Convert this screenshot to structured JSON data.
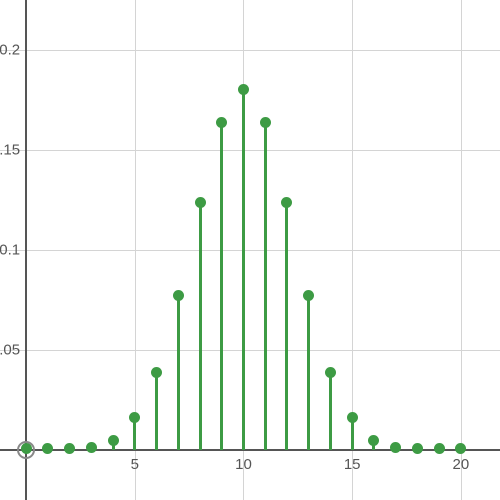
{
  "chart": {
    "type": "stem",
    "xlim": [
      -1.2,
      21.8
    ],
    "ylim": [
      -0.025,
      0.225
    ],
    "x_axis_at": 0,
    "y_axis_at": 0,
    "x_ticks": [
      5,
      10,
      15,
      20
    ],
    "y_ticks": [
      0.05,
      0.1,
      0.15,
      0.2
    ],
    "x_gridlines": [
      0,
      5,
      10,
      15,
      20
    ],
    "y_gridlines": [
      0,
      0.05,
      0.1,
      0.15,
      0.2
    ],
    "x_tick_labels": {
      "5": "5",
      "10": "10",
      "15": "15",
      "20": "20"
    },
    "y_tick_labels": {
      "0.05": ".05",
      "0.1": "0.1",
      "0.15": ".15",
      "0.2": "0.2"
    },
    "tick_fontsize": 15,
    "tick_color": "#555555",
    "grid_color": "#d4d4d4",
    "axis_color": "#555555",
    "background_color": "#ffffff",
    "stem_color": "#3d9b44",
    "marker_color": "#3d9b44",
    "stem_width": 3,
    "marker_size": 11,
    "origin_marker": true,
    "origin_color": "#888888",
    "x": [
      0,
      1,
      2,
      3,
      4,
      5,
      6,
      7,
      8,
      9,
      10,
      11,
      12,
      13,
      14,
      15,
      16,
      17,
      18,
      19,
      20
    ],
    "y": [
      0.001,
      0.001,
      0.001,
      0.0015,
      0.0049,
      0.0163,
      0.039,
      0.0775,
      0.1239,
      0.164,
      0.1801,
      0.164,
      0.1239,
      0.0775,
      0.039,
      0.0163,
      0.0049,
      0.0015,
      0.001,
      0.001,
      0.001
    ]
  }
}
